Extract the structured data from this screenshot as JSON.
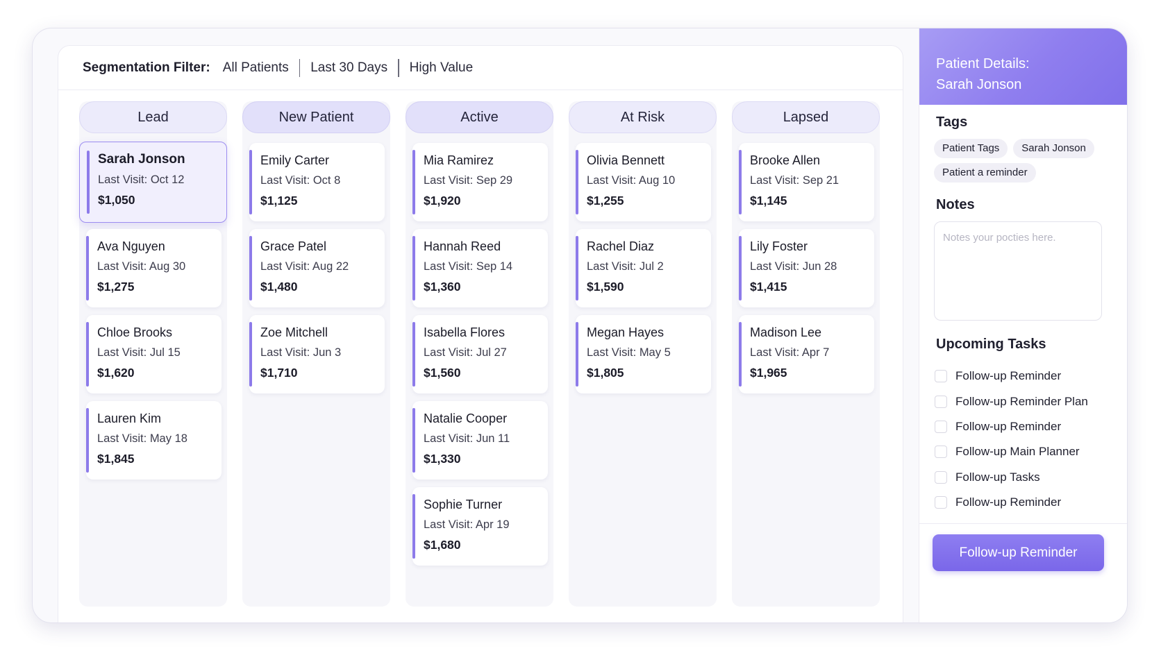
{
  "filter": {
    "label": "Segmentation Filter:",
    "options": [
      "All Patients",
      "Last 30 Days",
      "High Value"
    ]
  },
  "columns": [
    {
      "title": "Lead",
      "cards": [
        {
          "name": "Sarah Jonson",
          "visit": "Last Visit: Oct 12",
          "amount": "$1,050",
          "selected": true
        },
        {
          "name": "Ava Nguyen",
          "visit": "Last Visit: Aug 30",
          "amount": "$1,275"
        },
        {
          "name": "Chloe Brooks",
          "visit": "Last Visit: Jul 15",
          "amount": "$1,620"
        },
        {
          "name": "Lauren Kim",
          "visit": "Last Visit: May 18",
          "amount": "$1,845"
        }
      ]
    },
    {
      "title": "New Patient",
      "cards": [
        {
          "name": "Emily Carter",
          "visit": "Last Visit: Oct 8",
          "amount": "$1,125"
        },
        {
          "name": "Grace Patel",
          "visit": "Last Visit: Aug 22",
          "amount": "$1,480"
        },
        {
          "name": "Zoe Mitchell",
          "visit": "Last Visit: Jun 3",
          "amount": "$1,710"
        }
      ]
    },
    {
      "title": "Active",
      "cards": [
        {
          "name": "Mia Ramirez",
          "visit": "Last Visit: Sep 29",
          "amount": "$1,920"
        },
        {
          "name": "Hannah Reed",
          "visit": "Last Visit: Sep 14",
          "amount": "$1,360"
        },
        {
          "name": "Isabella Flores",
          "visit": "Last Visit: Jul 27",
          "amount": "$1,560"
        },
        {
          "name": "Natalie Cooper",
          "visit": "Last Visit: Jun 11",
          "amount": "$1,330"
        },
        {
          "name": "Sophie Turner",
          "visit": "Last Visit: Apr 19",
          "amount": "$1,680"
        }
      ]
    },
    {
      "title": "At Risk",
      "cards": [
        {
          "name": "Olivia Bennett",
          "visit": "Last Visit: Aug 10",
          "amount": "$1,255"
        },
        {
          "name": "Rachel Diaz",
          "visit": "Last Visit: Jul 2",
          "amount": "$1,590"
        },
        {
          "name": "Megan Hayes",
          "visit": "Last Visit: May 5",
          "amount": "$1,805"
        }
      ]
    },
    {
      "title": "Lapsed",
      "cards": [
        {
          "name": "Brooke Allen",
          "visit": "Last Visit: Sep 21",
          "amount": "$1,145"
        },
        {
          "name": "Lily Foster",
          "visit": "Last Visit: Jun 28",
          "amount": "$1,415"
        },
        {
          "name": "Madison Lee",
          "visit": "Last Visit: Apr 7",
          "amount": "$1,965"
        }
      ]
    }
  ],
  "panel": {
    "title_line1": "Patient Details:",
    "title_line2": "Sarah Jonson",
    "tags_title": "Tags",
    "tags": [
      "Patient Tags",
      "Sarah Jonson",
      "Patient a reminder"
    ],
    "notes_title": "Notes",
    "notes_placeholder": "Notes your pocties here.",
    "tasks_title": "Upcoming Tasks",
    "tasks": [
      "Follow-up Reminder",
      "Follow-up Reminder Plan",
      "Follow-up Reminder",
      "Follow-up Main Planner",
      "Follow-up Tasks",
      "Follow-up Reminder"
    ],
    "cta_label": "Follow-up Reminder"
  },
  "colors": {
    "accent": "#8d7bea",
    "header_gradient_start": "#a79cf4",
    "header_gradient_end": "#8070ea"
  }
}
